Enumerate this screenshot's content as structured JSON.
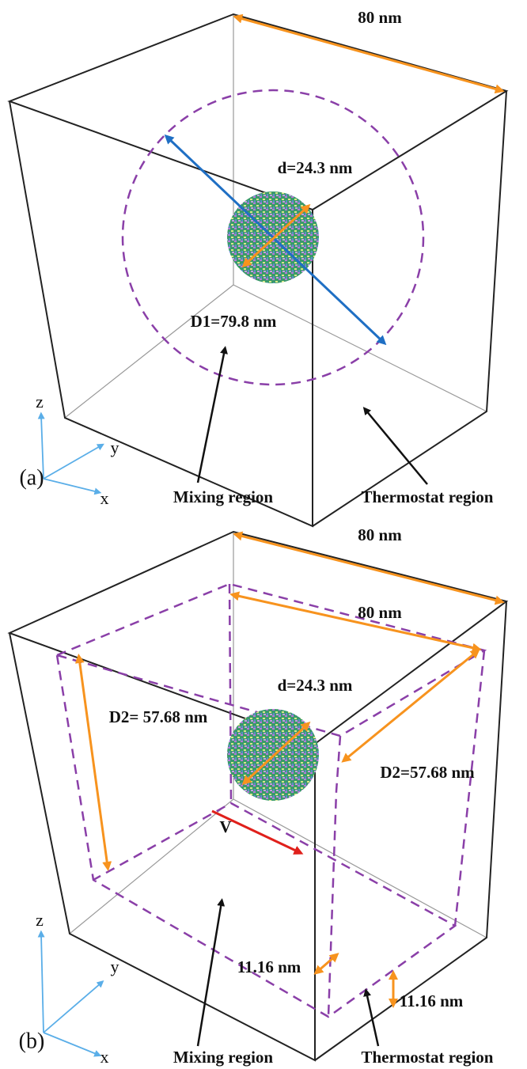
{
  "panels": [
    {
      "label": "(a)",
      "box_size": "80 nm",
      "particle_diameter": "d=24.3 nm",
      "mixing_diameter": "D1=79.8 nm",
      "mixing_region": "Mixing region",
      "thermostat_region": "Thermostat region",
      "axes": {
        "z": "z",
        "y": "y",
        "x": "x"
      }
    },
    {
      "label": "(b)",
      "box_size": "80 nm",
      "inner_box_size": "80 nm",
      "particle_diameter": "d=24.3 nm",
      "mixing_width_left": "D2= 57.68 nm",
      "mixing_width_right": "D2=57.68 nm",
      "velocity": "V",
      "thermostat_width_1": "11.16 nm",
      "thermostat_width_2": "11.16 nm",
      "mixing_region": "Mixing region",
      "thermostat_region": "Thermostat region",
      "axes": {
        "z": "z",
        "y": "y",
        "x": "x"
      }
    }
  ]
}
